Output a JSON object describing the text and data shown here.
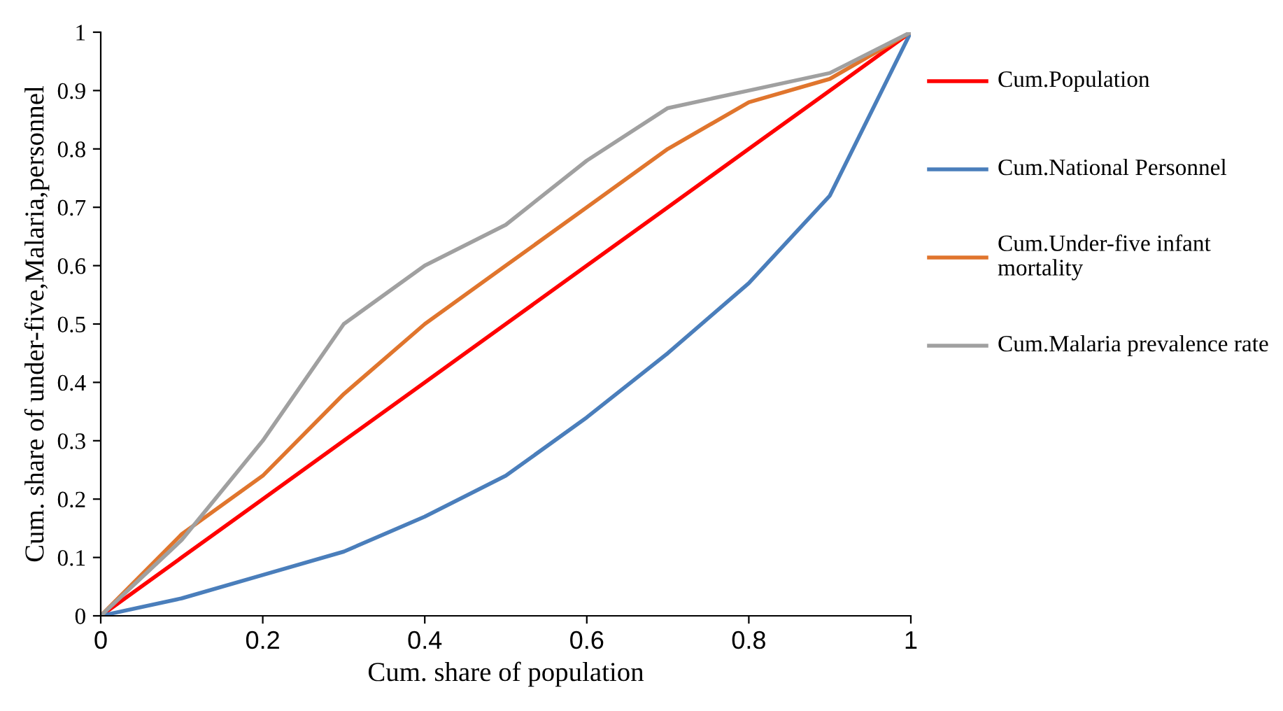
{
  "chart_data": {
    "type": "line",
    "xlabel": "Cum. share of population",
    "ylabel": "Cum. share of under-five,Malaria,personnel",
    "x": [
      0,
      0.1,
      0.2,
      0.3,
      0.4,
      0.5,
      0.6,
      0.7,
      0.8,
      0.9,
      1
    ],
    "series": [
      {
        "name": "Cum.Population",
        "color": "#ff0000",
        "values": [
          0,
          0.1,
          0.2,
          0.3,
          0.4,
          0.5,
          0.6,
          0.7,
          0.8,
          0.9,
          1
        ]
      },
      {
        "name": "Cum.National Personnel",
        "color": "#4a7ebb",
        "values": [
          0,
          0.03,
          0.07,
          0.11,
          0.17,
          0.24,
          0.34,
          0.45,
          0.57,
          0.72,
          1
        ]
      },
      {
        "name": "Cum.Under-five infant mortality",
        "color": "#e0752d",
        "values": [
          0,
          0.14,
          0.24,
          0.38,
          0.5,
          0.6,
          0.7,
          0.8,
          0.88,
          0.92,
          1
        ]
      },
      {
        "name": "Cum.Malaria prevalence rate",
        "color": "#a0a0a0",
        "values": [
          0,
          0.13,
          0.3,
          0.5,
          0.6,
          0.67,
          0.78,
          0.87,
          0.9,
          0.93,
          1
        ]
      }
    ],
    "xlim": [
      0,
      1
    ],
    "xticks": [
      0,
      0.2,
      0.4,
      0.6,
      0.8,
      1
    ],
    "ylim": [
      0,
      1
    ],
    "yticks": [
      0,
      0.1,
      0.2,
      0.3,
      0.4,
      0.5,
      0.6,
      0.7,
      0.8,
      0.9,
      1
    ],
    "legend": "right",
    "grid": false,
    "marker": "none",
    "line_style": "solid"
  }
}
